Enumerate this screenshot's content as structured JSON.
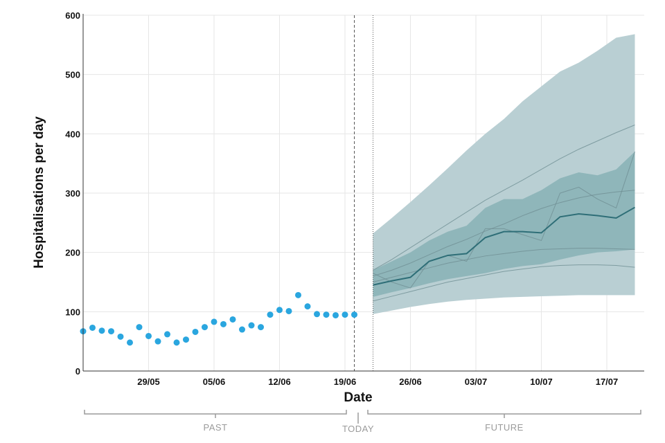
{
  "chart_data": {
    "type": "line",
    "xlabel": "Date",
    "ylabel": "Hospitalisations per day",
    "ylim": [
      0,
      600
    ],
    "yticks": [
      0,
      100,
      200,
      300,
      400,
      500,
      600
    ],
    "x_start": "2021-05-22",
    "xlim": [
      "2021-05-22",
      "2021-07-21"
    ],
    "xticks": [
      {
        "date": "2021-05-29",
        "label": "29/05"
      },
      {
        "date": "2021-06-05",
        "label": "05/06"
      },
      {
        "date": "2021-06-12",
        "label": "12/06"
      },
      {
        "date": "2021-06-19",
        "label": "19/06"
      },
      {
        "date": "2021-06-26",
        "label": "26/06"
      },
      {
        "date": "2021-07-03",
        "label": "03/07"
      },
      {
        "date": "2021-07-10",
        "label": "10/07"
      },
      {
        "date": "2021-07-17",
        "label": "17/07"
      }
    ],
    "grid": true,
    "observed": {
      "color": "#2aa6df",
      "dates": [
        "2021-05-22",
        "2021-05-23",
        "2021-05-24",
        "2021-05-25",
        "2021-05-26",
        "2021-05-27",
        "2021-05-28",
        "2021-05-29",
        "2021-05-30",
        "2021-05-31",
        "2021-06-01",
        "2021-06-02",
        "2021-06-03",
        "2021-06-04",
        "2021-06-05",
        "2021-06-06",
        "2021-06-07",
        "2021-06-08",
        "2021-06-09",
        "2021-06-10",
        "2021-06-11",
        "2021-06-12",
        "2021-06-13",
        "2021-06-14",
        "2021-06-15",
        "2021-06-16",
        "2021-06-17",
        "2021-06-18",
        "2021-06-19",
        "2021-06-20"
      ],
      "values": [
        67,
        73,
        68,
        67,
        58,
        48,
        74,
        59,
        50,
        62,
        48,
        53,
        66,
        74,
        83,
        79,
        87,
        70,
        77,
        74,
        95,
        103,
        101,
        128,
        109,
        96,
        95,
        94,
        95,
        95
      ]
    },
    "today_marker": "2021-06-22",
    "last_observed_marker": "2021-06-20",
    "forecast": {
      "dates": [
        "2021-06-22",
        "2021-06-24",
        "2021-06-26",
        "2021-06-28",
        "2021-06-30",
        "2021-07-02",
        "2021-07-04",
        "2021-07-06",
        "2021-07-08",
        "2021-07-10",
        "2021-07-12",
        "2021-07-14",
        "2021-07-16",
        "2021-07-18",
        "2021-07-20"
      ],
      "median": [
        145,
        152,
        158,
        185,
        195,
        198,
        225,
        235,
        235,
        233,
        260,
        265,
        262,
        258,
        276
      ],
      "outer_lower": [
        96,
        102,
        108,
        113,
        117,
        120,
        122,
        124,
        125,
        126,
        127,
        128,
        128,
        128,
        128
      ],
      "outer_upper": [
        232,
        258,
        285,
        313,
        342,
        372,
        400,
        425,
        455,
        480,
        505,
        520,
        540,
        562,
        568
      ],
      "inner_lower": [
        125,
        133,
        140,
        148,
        155,
        160,
        165,
        172,
        177,
        180,
        188,
        195,
        200,
        202,
        205
      ],
      "inner_upper": [
        170,
        185,
        200,
        220,
        235,
        245,
        275,
        290,
        290,
        305,
        325,
        335,
        330,
        340,
        370
      ],
      "scenario_color_outer": "#b9cfd3",
      "scenario_color_inner": "#8bb2b7",
      "median_color": "#2e6e77",
      "scenario_lines": [
        {
          "values": [
            170,
            188,
            208,
            228,
            248,
            268,
            288,
            305,
            322,
            340,
            358,
            374,
            388,
            402,
            415
          ]
        },
        {
          "values": [
            160,
            170,
            182,
            196,
            210,
            222,
            236,
            248,
            262,
            274,
            284,
            292,
            298,
            302,
            305
          ]
        },
        {
          "values": [
            150,
            158,
            166,
            174,
            182,
            188,
            194,
            198,
            202,
            205,
            206,
            207,
            207,
            206,
            205
          ]
        },
        {
          "values": [
            118,
            126,
            134,
            142,
            150,
            156,
            162,
            168,
            172,
            176,
            178,
            179,
            179,
            178,
            175
          ]
        },
        {
          "values": [
            165,
            150,
            140,
            185,
            195,
            185,
            240,
            240,
            230,
            220,
            300,
            310,
            290,
            275,
            370
          ]
        }
      ]
    },
    "sections": {
      "past": "PAST",
      "today": "TODAY",
      "future": "FUTURE"
    }
  }
}
